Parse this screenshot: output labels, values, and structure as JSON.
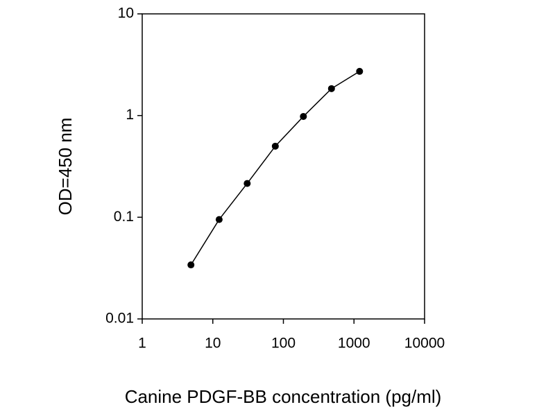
{
  "chart_data": {
    "type": "line",
    "x_label": "Canine PDGF-BB concentration (pg/ml)",
    "y_label": "OD=450 nm",
    "x": [
      4.9,
      12.3,
      30.7,
      76.8,
      192,
      480,
      1200
    ],
    "series": [
      {
        "color": "#000000",
        "values": [
          0.034,
          0.095,
          0.215,
          0.5,
          0.98,
          1.84,
          2.72
        ]
      }
    ],
    "xlim": [
      1,
      10000
    ],
    "ylim": [
      0.01,
      10
    ],
    "xticks": [
      1,
      10,
      100,
      1000,
      10000
    ],
    "yticks": [
      0.01,
      0.1,
      1,
      10
    ],
    "xscale": "log",
    "yscale": "log",
    "grid": false
  }
}
